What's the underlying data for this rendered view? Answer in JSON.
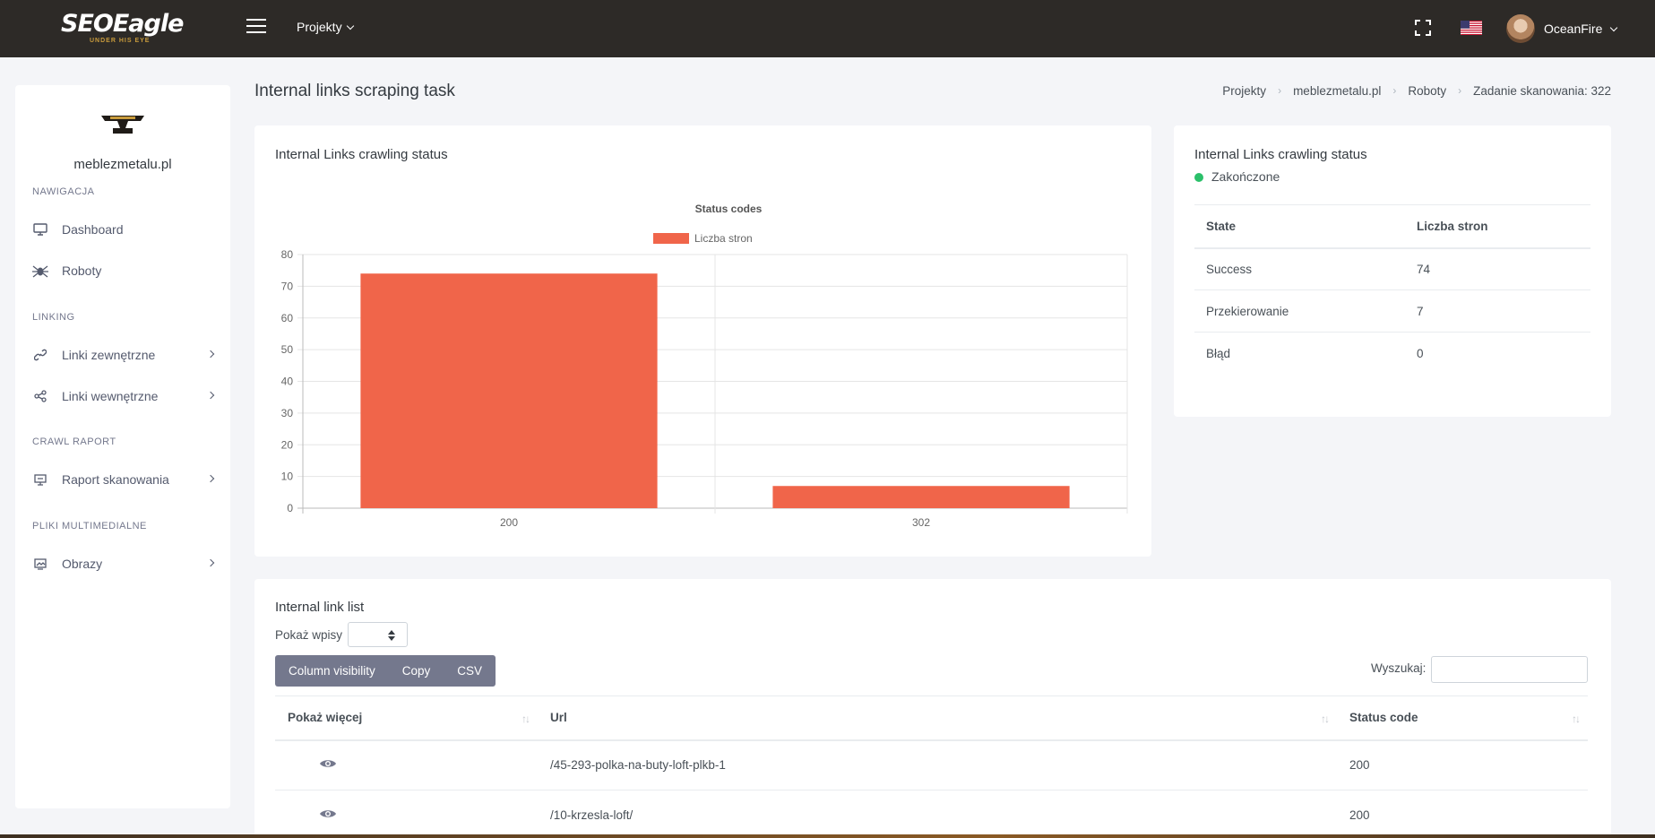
{
  "topbar": {
    "brand": "SEOEagle",
    "tagline": "UNDER HIS EYE",
    "menu_label": "Projekty",
    "user_name": "OceanFire"
  },
  "sidebar": {
    "site_name": "meblezmetalu.pl",
    "sections": [
      {
        "title": "NAWIGACJA",
        "items": [
          {
            "label": "Dashboard",
            "icon": "monitor-icon"
          },
          {
            "label": "Roboty",
            "icon": "spider-icon"
          }
        ]
      },
      {
        "title": "LINKING",
        "items": [
          {
            "label": "Linki zewnętrzne",
            "icon": "link-icon"
          },
          {
            "label": "Linki wewnętrzne",
            "icon": "share-icon"
          }
        ]
      },
      {
        "title": "CRAWL RAPORT",
        "items": [
          {
            "label": "Raport skanowania",
            "icon": "report-icon"
          }
        ]
      },
      {
        "title": "PLIKI MULTIMEDIALNE",
        "items": [
          {
            "label": "Obrazy",
            "icon": "image-icon"
          }
        ]
      }
    ]
  },
  "header": {
    "title": "Internal links scraping task",
    "breadcrumb": [
      "Projekty",
      "meblezmetalu.pl",
      "Roboty",
      "Zadanie skanowania: 322"
    ]
  },
  "chart_card": {
    "title": "Internal Links crawling status"
  },
  "chart_data": {
    "type": "bar",
    "title": "Status codes",
    "categories": [
      "200",
      "302"
    ],
    "series": [
      {
        "name": "Liczba stron",
        "values": [
          74,
          7
        ],
        "color": "#f0654a"
      }
    ],
    "ylim": [
      0,
      80
    ],
    "yticks": [
      0,
      10,
      20,
      30,
      40,
      50,
      60,
      70,
      80
    ],
    "legend": "top",
    "grid": true
  },
  "status_card": {
    "title": "Internal Links crawling status",
    "status": "Zakończone",
    "status_color": "#2bc06a",
    "columns": [
      "State",
      "Liczba stron"
    ],
    "rows": [
      [
        "Success",
        "74"
      ],
      [
        "Przekierowanie",
        "7"
      ],
      [
        "Błąd",
        "0"
      ]
    ]
  },
  "list_card": {
    "title": "Internal link list",
    "show_entries_label": "Pokaż wpisy",
    "buttons": [
      "Column visibility",
      "Copy",
      "CSV"
    ],
    "search_label": "Wyszukaj:",
    "columns": [
      "Pokaż więcej",
      "Url",
      "Status code"
    ],
    "rows": [
      {
        "url": "/45-293-polka-na-buty-loft-plkb-1",
        "status": "200"
      },
      {
        "url": "/10-krzesla-loft/",
        "status": "200"
      }
    ]
  },
  "colors": {
    "topbar": "#2d2a27",
    "accent_bar": "#f0654a",
    "button_group": "#74788d"
  }
}
